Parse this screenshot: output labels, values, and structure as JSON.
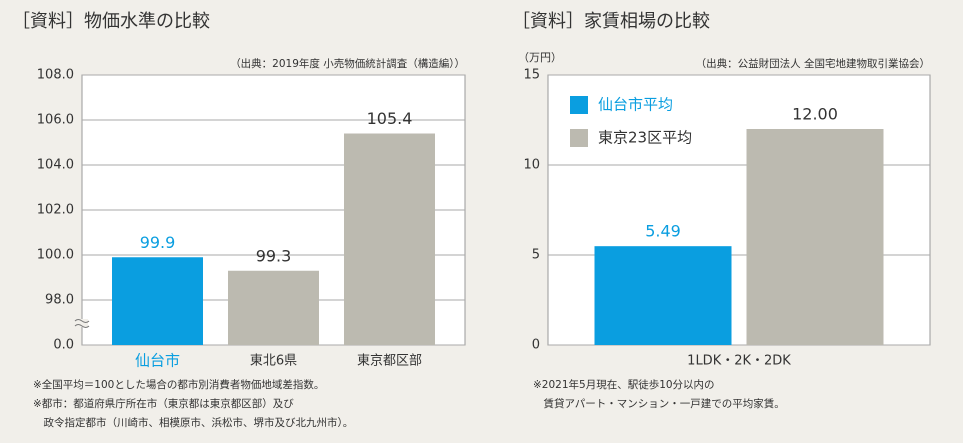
{
  "chart_data": [
    {
      "type": "bar",
      "title": "［資料］物価水準の比較",
      "source": "（出典：2019年度 小売物価統計調査（構造編））",
      "categories": [
        "仙台市",
        "東北6県",
        "東京都区部"
      ],
      "values": [
        99.9,
        99.3,
        105.4
      ],
      "colors": [
        "#0a9ee0",
        "#bcbab0",
        "#bcbab0"
      ],
      "label_colors": [
        "#0a9ee0",
        "#333333",
        "#333333"
      ],
      "ylim": [
        0,
        108
      ],
      "axis_break": [
        0,
        96
      ],
      "yticks": [
        {
          "value": 0,
          "label": "0.0"
        },
        {
          "value": 98,
          "label": "98.0"
        },
        {
          "value": 100,
          "label": "100.0"
        },
        {
          "value": 102,
          "label": "102.0"
        },
        {
          "value": 104,
          "label": "104.0"
        },
        {
          "value": 106,
          "label": "106.0"
        },
        {
          "value": 108,
          "label": "108.0"
        }
      ],
      "grid": true,
      "notes": [
        "※全国平均＝100とした場合の都市別消費者物価地域差指数。",
        "※都市：都道府県庁所在市（東京都は東京都区部）及び",
        "　政令指定都市（川崎市、相模原市、浜松市、堺市及び北九州市）。"
      ]
    },
    {
      "type": "bar",
      "title": "［資料］家賃相場の比較",
      "source": "（出典：公益財団法人 全国宅地建物取引業協会）",
      "y_unit": "（万円）",
      "categories": [
        "1LDK・2K・2DK"
      ],
      "series": [
        {
          "name": "仙台市平均",
          "color": "#0a9ee0",
          "label_color": "#0a9ee0",
          "values": [
            5.49
          ]
        },
        {
          "name": "東京23区平均",
          "color": "#bcbab0",
          "label_color": "#333333",
          "values": [
            12.0
          ],
          "value_labels": [
            "12.00"
          ]
        }
      ],
      "ylim": [
        0,
        15
      ],
      "yticks": [
        0,
        5,
        10,
        15
      ],
      "grid": true,
      "legend": "upper-left",
      "notes": [
        "※2021年5月現在、駅徒歩10分以内の",
        "　賃貸アパート・マンション・一戸建での平均家賃。"
      ]
    }
  ]
}
